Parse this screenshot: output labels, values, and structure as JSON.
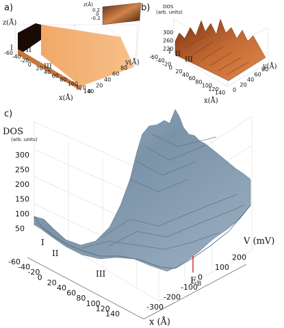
{
  "panels": {
    "a": {
      "letter": "a)",
      "z_label": "z(Å)",
      "inset_z_label": "z(Å)",
      "inset_ticks": [
        "0.2",
        "0",
        "-0.2"
      ],
      "y_label": "y(Å)",
      "x_label": "x(Å)",
      "regions": [
        "I",
        "II",
        "III"
      ],
      "x_ticks": [
        "-60",
        "-40",
        "-20",
        "0",
        "20",
        "40",
        "60",
        "80",
        "100",
        "120",
        "140"
      ],
      "y_ticks": [
        "0",
        "20",
        "40",
        "60",
        "80"
      ]
    },
    "b": {
      "letter": "b)",
      "dos_label": "DOS",
      "dos_units": "(arb. units)",
      "z_ticks": [
        "300",
        "260",
        "220"
      ],
      "y_label": "y(Å)",
      "x_label": "x(Å)",
      "regions": [
        "I",
        "II",
        "III"
      ],
      "x_ticks": [
        "-60",
        "-40",
        "-20",
        "0",
        "20",
        "40",
        "60",
        "80",
        "100",
        "120",
        "140"
      ],
      "y_ticks": [
        "0",
        "20",
        "40",
        "60",
        "80"
      ]
    },
    "c": {
      "letter": "c)",
      "dos_label": "DOS",
      "dos_units": "(arb. units)",
      "z_ticks": [
        "300",
        "250",
        "200",
        "150",
        "100",
        "50"
      ],
      "x_label": "x (Å)",
      "x_ticks": [
        "-60",
        "-40",
        "-20",
        "0",
        "20",
        "40",
        "60",
        "80",
        "100",
        "120",
        "140"
      ],
      "v_label": "V (mV)",
      "v_ticks": [
        "-300",
        "-200",
        "-100",
        "0",
        "100",
        "200"
      ],
      "marker": "E",
      "marker_sub": "B",
      "regions": [
        "I",
        "II",
        "III"
      ]
    }
  }
}
